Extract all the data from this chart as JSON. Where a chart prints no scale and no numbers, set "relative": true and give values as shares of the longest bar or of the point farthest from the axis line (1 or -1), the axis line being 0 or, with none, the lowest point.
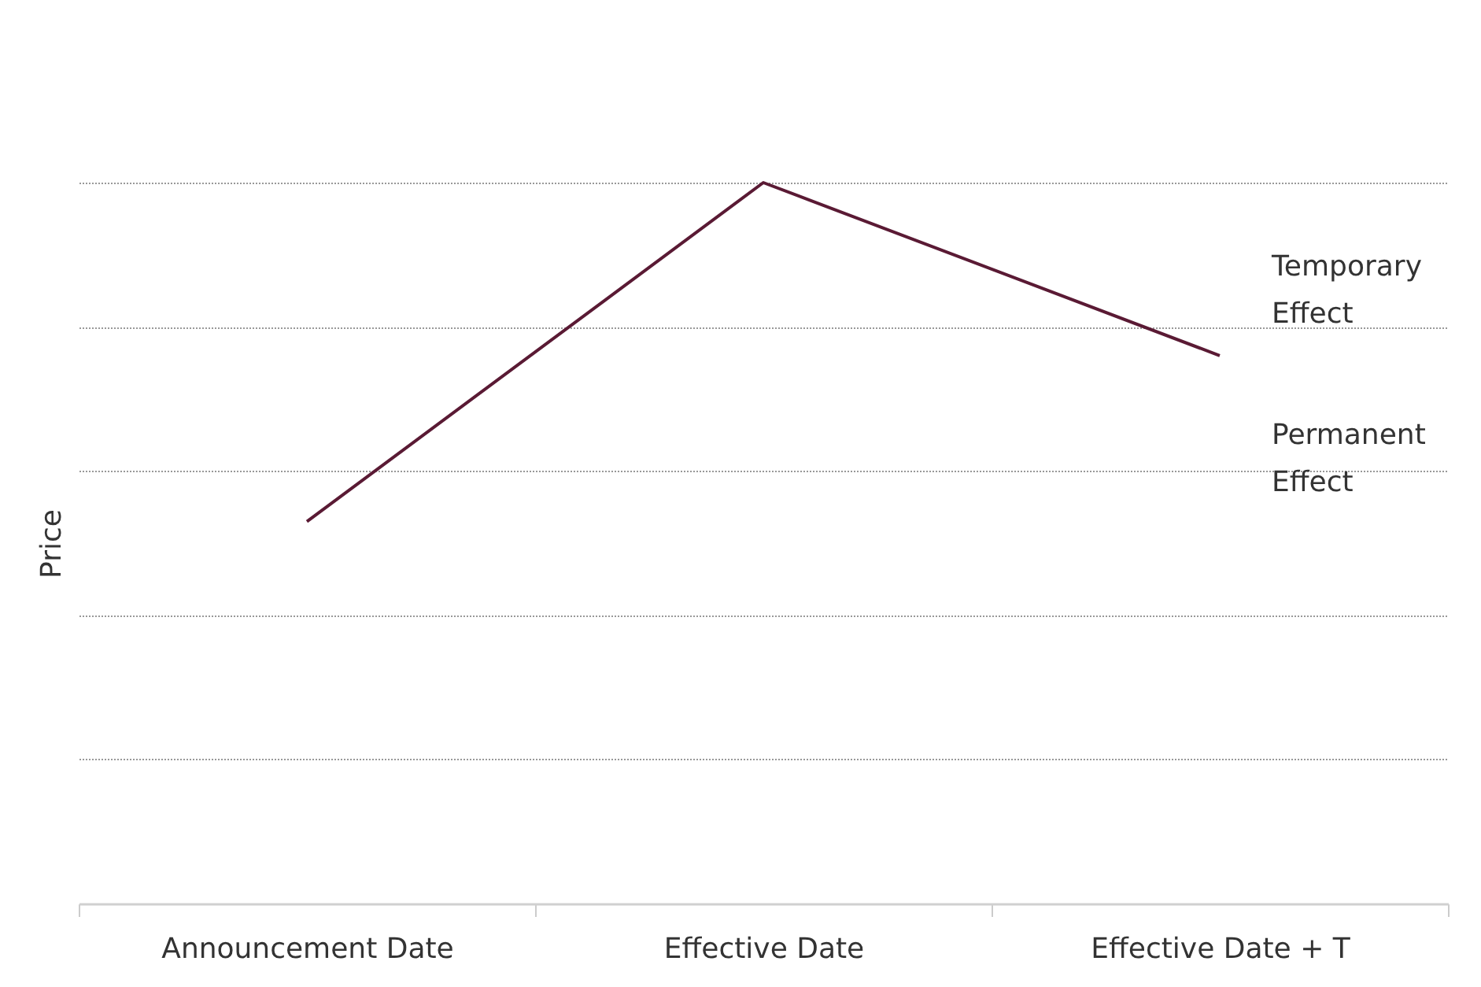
{
  "chart_data": {
    "type": "line",
    "relative": true,
    "ylabel": "Price",
    "categories": [
      "Announcement Date",
      "Effective Date",
      "Effective Date + T"
    ],
    "series": [
      {
        "color": "#5a1a34",
        "values": [
          0.53,
          1,
          0.76
        ]
      }
    ],
    "annotations": [
      "Temporary Effect",
      "Permanent Effect"
    ],
    "grid": "y"
  }
}
